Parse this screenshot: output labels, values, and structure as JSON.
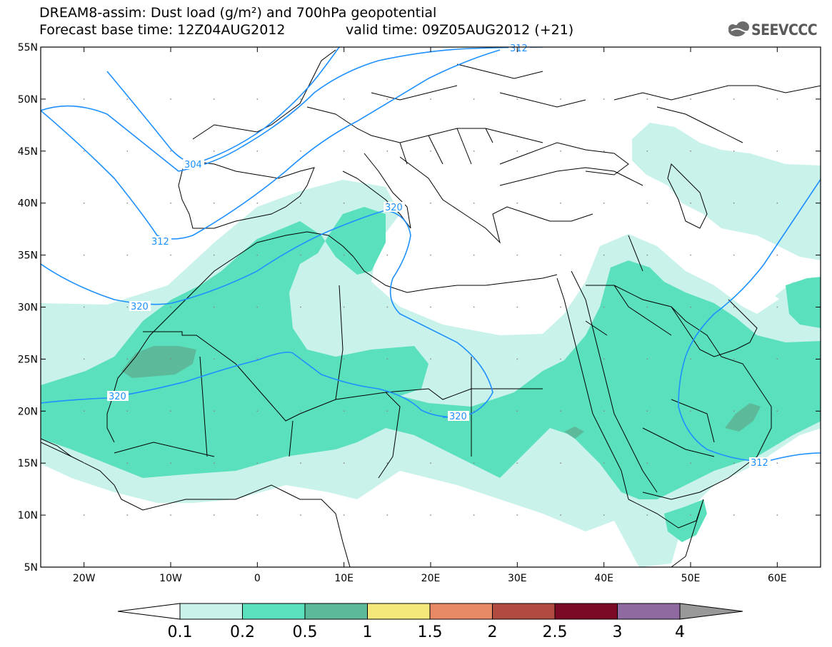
{
  "header": {
    "title_line1": "DREAM8-assim: Dust load (g/m²) and 700hPa geopotential",
    "title_line2": "Forecast base time: 12Z04AUG2012",
    "valid_time": "valid time: 09Z05AUG2012 (+21)",
    "logo_text": "SEEVCCC"
  },
  "map": {
    "lat_labels": [
      "55N",
      "50N",
      "45N",
      "40N",
      "35N",
      "30N",
      "25N",
      "20N",
      "15N",
      "10N",
      "5N"
    ],
    "lon_labels": [
      "20W",
      "10W",
      "0",
      "10E",
      "20E",
      "30E",
      "40E",
      "50E",
      "60E"
    ],
    "contour_labels": [
      "312",
      "304",
      "312",
      "320",
      "320",
      "320",
      "320",
      "312"
    ]
  },
  "colorbar": {
    "ticks": [
      "0.1",
      "0.2",
      "0.5",
      "1",
      "1.5",
      "2",
      "2.5",
      "3",
      "4"
    ],
    "colors": [
      "#c8f2ea",
      "#5be0bd",
      "#5cba9a",
      "#f5e87a",
      "#e98a66",
      "#b24b3f",
      "#7a0a25",
      "#8f6aa0"
    ],
    "left_arrow_color": "#ffffff",
    "right_arrow_color": "#999999"
  },
  "colors": {
    "dust_light": "#c8f2ea",
    "dust_medium": "#5be0bd",
    "dust_heavy": "#5cba9a",
    "contour": "#1e90ff",
    "borders": "#000000"
  }
}
